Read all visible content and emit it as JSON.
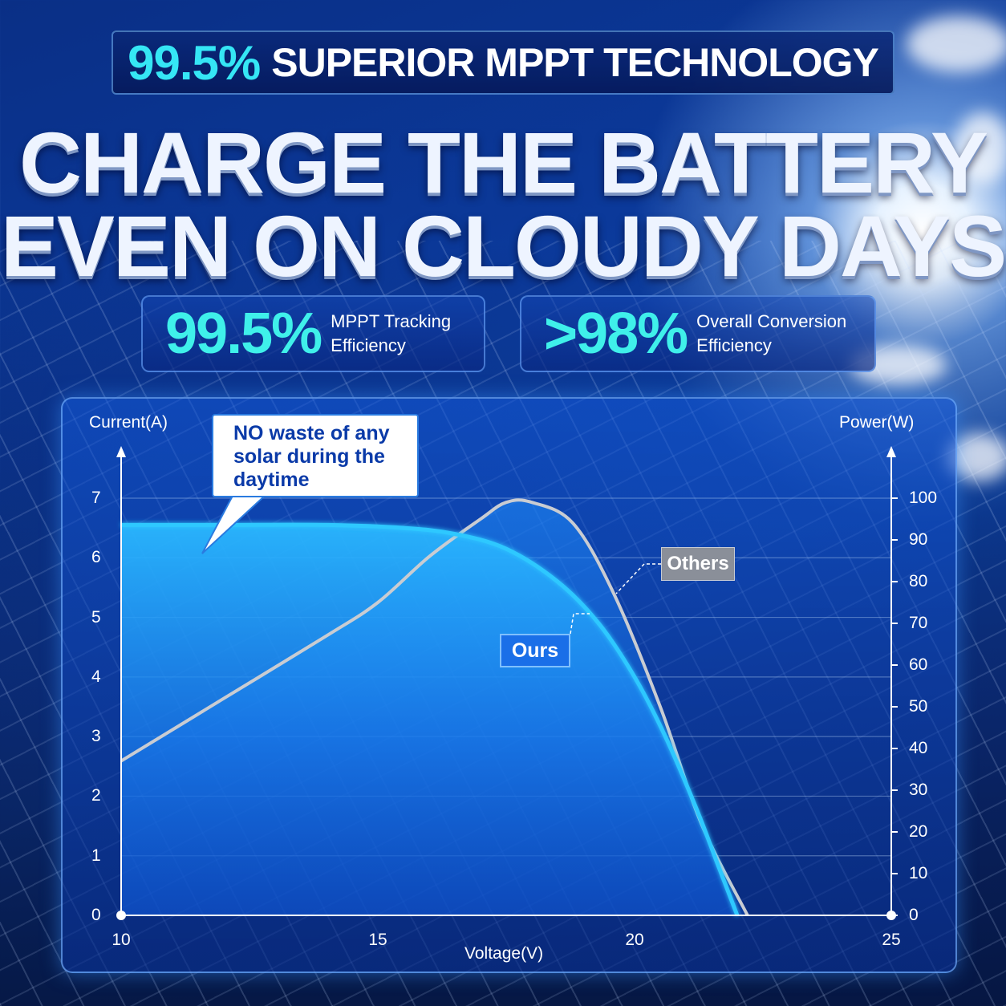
{
  "header": {
    "banner_pct": "99.5%",
    "banner_text": "SUPERIOR MPPT TECHNOLOGY",
    "headline_line1": "CHARGE THE BATTERY",
    "headline_line2": "EVEN ON CLOUDY DAYS"
  },
  "stats": [
    {
      "value": "99.5%",
      "label_line1": "MPPT Tracking",
      "label_line2": "Efficiency"
    },
    {
      "value": ">98%",
      "label_line1": "Overall Conversion",
      "label_line2": "Efficiency"
    }
  ],
  "callout": {
    "line1": "NO waste of any",
    "line2": "solar during the",
    "line3": "daytime"
  },
  "colors": {
    "ours": "#2ec8ff",
    "others": "#c9ccd2",
    "accent": "#35e6f5"
  },
  "chart_data": {
    "type": "line",
    "xlabel": "Voltage(V)",
    "ylabel_left": "Current(A)",
    "ylabel_right": "Power(W)",
    "xlim": [
      10,
      25
    ],
    "ylim_left": [
      0,
      7
    ],
    "ylim_right": [
      0,
      100
    ],
    "x_ticks": [
      "10",
      "15",
      "20",
      "25"
    ],
    "y_ticks_left": [
      "0",
      "1",
      "2",
      "3",
      "4",
      "5",
      "6",
      "7"
    ],
    "y_ticks_right": [
      "0",
      "10",
      "20",
      "30",
      "40",
      "50",
      "60",
      "70",
      "80",
      "90",
      "100"
    ],
    "grid": true,
    "series": [
      {
        "name": "Ours",
        "axis": "left",
        "x": [
          10,
          12,
          14,
          15.5,
          16.5,
          17.5,
          18.5,
          19.3,
          20,
          20.6,
          21.2,
          21.6,
          22
        ],
        "values": [
          6.55,
          6.55,
          6.55,
          6.5,
          6.4,
          6.15,
          5.6,
          4.9,
          4.0,
          3.0,
          1.8,
          0.9,
          0
        ]
      },
      {
        "name": "Others",
        "axis": "right",
        "x": [
          10,
          12,
          14,
          15,
          16,
          17,
          17.5,
          18,
          18.8,
          19.6,
          20.5,
          21.3,
          22.2
        ],
        "values": [
          37,
          52,
          67,
          75,
          86,
          95,
          99,
          99,
          94,
          77,
          50,
          22,
          0
        ]
      }
    ]
  }
}
